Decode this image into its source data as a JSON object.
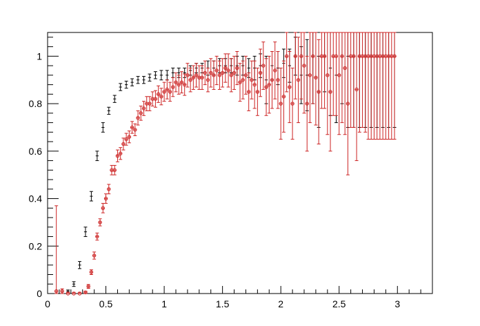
{
  "chart_data": {
    "type": "scatter",
    "title": "",
    "xlabel": "",
    "ylabel": "",
    "xlim": [
      0,
      3.3
    ],
    "ylim": [
      0,
      1.1
    ],
    "grid": false,
    "legend": "none",
    "x_ticks": [
      {
        "v": 0,
        "label": "0"
      },
      {
        "v": 0.5,
        "label": "0.5"
      },
      {
        "v": 1,
        "label": "1"
      },
      {
        "v": 1.5,
        "label": "1.5"
      },
      {
        "v": 2,
        "label": "2"
      },
      {
        "v": 2.5,
        "label": "2.5"
      },
      {
        "v": 3,
        "label": "3"
      }
    ],
    "y_ticks": [
      {
        "v": 0,
        "label": "0"
      },
      {
        "v": 0.2,
        "label": "0.2"
      },
      {
        "v": 0.4,
        "label": "0.4"
      },
      {
        "v": 0.6,
        "label": "0.6"
      },
      {
        "v": 0.8,
        "label": "0.8"
      },
      {
        "v": 1,
        "label": "1"
      }
    ],
    "series": [
      {
        "color": "#000000",
        "marker": "plus",
        "x": [
          0.175,
          0.225,
          0.275,
          0.325,
          0.375,
          0.425,
          0.475,
          0.525,
          0.575,
          0.625,
          0.675,
          0.725,
          0.775,
          0.825,
          0.875,
          0.925,
          0.975,
          1.025,
          1.075,
          1.125,
          1.175,
          1.225,
          1.275,
          1.325,
          1.375,
          1.425,
          1.475,
          1.525,
          1.575,
          1.625,
          1.675,
          1.725,
          1.775,
          1.825,
          1.875,
          1.925,
          1.975,
          2.025,
          2.075,
          2.125,
          2.175,
          2.225,
          2.275,
          2.325,
          2.375,
          2.425,
          2.475,
          2.525,
          2.575,
          2.625,
          2.675,
          2.725,
          2.775,
          2.825,
          2.875,
          2.925,
          2.975
        ],
        "y": [
          0.01,
          0.04,
          0.12,
          0.26,
          0.41,
          0.58,
          0.7,
          0.77,
          0.82,
          0.87,
          0.88,
          0.89,
          0.9,
          0.9,
          0.91,
          0.92,
          0.92,
          0.92,
          0.93,
          0.93,
          0.93,
          0.94,
          0.95,
          0.95,
          0.95,
          0.95,
          0.96,
          0.96,
          0.96,
          0.96,
          0.96,
          0.95,
          0.95,
          0.96,
          0.9,
          0.96,
          0.95,
          0.97,
          0.96,
          1.0,
          0.92,
          0.92,
          1.0,
          0.85,
          1.0,
          0.95,
          0.92,
          1.0,
          1.0,
          1.0,
          1.0,
          1.0,
          1.0,
          1.0,
          1.0,
          1.0,
          1.0
        ],
        "err": [
          0.005,
          0.01,
          0.015,
          0.02,
          0.02,
          0.02,
          0.02,
          0.015,
          0.015,
          0.015,
          0.015,
          0.015,
          0.015,
          0.015,
          0.015,
          0.015,
          0.02,
          0.02,
          0.02,
          0.02,
          0.02,
          0.02,
          0.02,
          0.02,
          0.03,
          0.03,
          0.03,
          0.03,
          0.03,
          0.04,
          0.04,
          0.04,
          0.05,
          0.05,
          0.1,
          0.06,
          0.07,
          0.06,
          0.07,
          0.08,
          0.12,
          0.15,
          0.2,
          0.15,
          0.15,
          0.2,
          0.2,
          0.2,
          0.3,
          0.3,
          0.3,
          0.3,
          0.3,
          0.3,
          0.3,
          0.3,
          0.3
        ]
      },
      {
        "color": "#cc2222",
        "marker": "circle",
        "x": [
          0.075,
          0.125,
          0.175,
          0.225,
          0.275,
          0.325,
          0.35,
          0.375,
          0.4,
          0.425,
          0.45,
          0.475,
          0.5,
          0.525,
          0.55,
          0.575,
          0.6,
          0.625,
          0.65,
          0.675,
          0.7,
          0.725,
          0.75,
          0.775,
          0.8,
          0.825,
          0.85,
          0.875,
          0.9,
          0.925,
          0.95,
          0.975,
          1.0,
          1.025,
          1.05,
          1.075,
          1.1,
          1.125,
          1.15,
          1.175,
          1.2,
          1.225,
          1.25,
          1.275,
          1.3,
          1.325,
          1.35,
          1.375,
          1.4,
          1.425,
          1.45,
          1.475,
          1.5,
          1.525,
          1.55,
          1.575,
          1.6,
          1.625,
          1.65,
          1.675,
          1.7,
          1.725,
          1.75,
          1.775,
          1.8,
          1.825,
          1.85,
          1.875,
          1.9,
          1.925,
          1.95,
          1.975,
          2.0,
          2.025,
          2.05,
          2.075,
          2.1,
          2.125,
          2.15,
          2.175,
          2.2,
          2.225,
          2.25,
          2.275,
          2.3,
          2.325,
          2.35,
          2.375,
          2.4,
          2.425,
          2.45,
          2.475,
          2.5,
          2.525,
          2.55,
          2.575,
          2.6,
          2.625,
          2.65,
          2.675,
          2.7,
          2.725,
          2.75,
          2.775,
          2.8,
          2.825,
          2.85,
          2.875,
          2.9,
          2.925,
          2.95,
          2.975
        ],
        "y": [
          0.01,
          0.01,
          0.0,
          0.0,
          0.0,
          0.005,
          0.03,
          0.09,
          0.16,
          0.24,
          0.3,
          0.36,
          0.4,
          0.44,
          0.52,
          0.52,
          0.58,
          0.59,
          0.63,
          0.65,
          0.66,
          0.7,
          0.69,
          0.74,
          0.76,
          0.78,
          0.8,
          0.8,
          0.82,
          0.82,
          0.84,
          0.83,
          0.85,
          0.86,
          0.85,
          0.87,
          0.89,
          0.88,
          0.89,
          0.88,
          0.92,
          0.9,
          0.91,
          0.92,
          0.91,
          0.91,
          0.93,
          0.9,
          0.93,
          0.92,
          0.94,
          0.92,
          0.93,
          0.95,
          0.94,
          0.92,
          0.93,
          0.95,
          0.89,
          0.9,
          0.92,
          0.85,
          0.9,
          0.88,
          0.85,
          0.93,
          0.96,
          0.87,
          0.88,
          0.9,
          0.94,
          0.9,
          0.8,
          0.83,
          1.0,
          0.87,
          0.8,
          1.0,
          0.9,
          1.0,
          0.96,
          0.8,
          0.92,
          1.0,
          0.91,
          0.85,
          1.0,
          1.0,
          0.92,
          0.85,
          1.0,
          1.0,
          0.92,
          1.0,
          0.95,
          0.8,
          1.0,
          1.0,
          0.86,
          1.0,
          1.0,
          1.0,
          1.0,
          1.0,
          1.0,
          1.0,
          1.0,
          1.0,
          1.0,
          1.0,
          1.0,
          1.0
        ],
        "err": [
          0.36,
          0.01,
          0.005,
          0.005,
          0.005,
          0.005,
          0.008,
          0.01,
          0.015,
          0.015,
          0.015,
          0.02,
          0.02,
          0.02,
          0.02,
          0.02,
          0.025,
          0.025,
          0.025,
          0.025,
          0.025,
          0.025,
          0.025,
          0.03,
          0.03,
          0.03,
          0.03,
          0.03,
          0.03,
          0.035,
          0.035,
          0.035,
          0.04,
          0.04,
          0.04,
          0.04,
          0.04,
          0.04,
          0.045,
          0.045,
          0.05,
          0.05,
          0.05,
          0.05,
          0.05,
          0.05,
          0.05,
          0.05,
          0.06,
          0.06,
          0.06,
          0.06,
          0.06,
          0.06,
          0.07,
          0.07,
          0.07,
          0.07,
          0.08,
          0.08,
          0.08,
          0.08,
          0.08,
          0.1,
          0.1,
          0.1,
          0.1,
          0.12,
          0.12,
          0.12,
          0.12,
          0.12,
          0.15,
          0.15,
          0.15,
          0.15,
          0.15,
          0.18,
          0.18,
          0.18,
          0.2,
          0.2,
          0.2,
          0.2,
          0.2,
          0.22,
          0.22,
          0.22,
          0.25,
          0.25,
          0.25,
          0.25,
          0.25,
          0.28,
          0.28,
          0.3,
          0.3,
          0.3,
          0.3,
          0.32,
          0.3,
          0.32,
          0.35,
          0.35,
          0.35,
          0.35,
          0.35,
          0.35,
          0.35,
          0.35,
          0.35,
          0.35
        ]
      }
    ]
  }
}
